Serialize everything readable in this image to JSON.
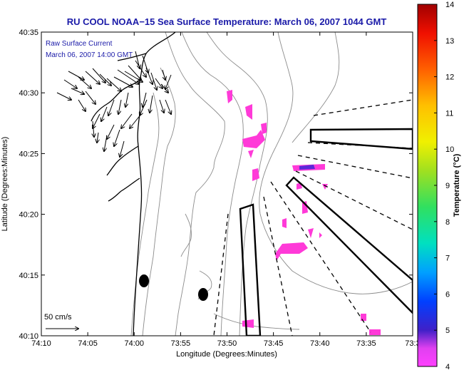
{
  "title": "RU COOL  NOAA−15  Sea Surface Temperature:  March 06, 2007 1044 GMT",
  "legend": {
    "line1": "Raw Surface Current",
    "line2": "March 06, 2007 14:00 GMT",
    "scale_label": "50 cm/s"
  },
  "axes": {
    "xlabel": "Longitude (Degrees:Minutes)",
    "ylabel": "Latitude (Degrees:Minutes)",
    "x_ticks": [
      "74:10",
      "74:05",
      "74:00",
      "73:55",
      "73:50",
      "73:45",
      "73:40",
      "73:35",
      "73:3"
    ],
    "y_ticks": [
      "40:35",
      "40:30",
      "40:25",
      "40:20",
      "40:15",
      "40:10"
    ]
  },
  "colorbar": {
    "label": "Temperature (°C)",
    "min": 4,
    "max": 14,
    "ticks": [
      "4",
      "5",
      "6",
      "7",
      "8",
      "9",
      "10",
      "11",
      "12",
      "13",
      "14"
    ]
  },
  "colors": {
    "title": "#1a1aa8",
    "sst_patch": "#ff3ad8",
    "sst_cold_patch": "#5a2ad8",
    "coast": "#000000",
    "bathymetry": "#8c8c8c"
  }
}
